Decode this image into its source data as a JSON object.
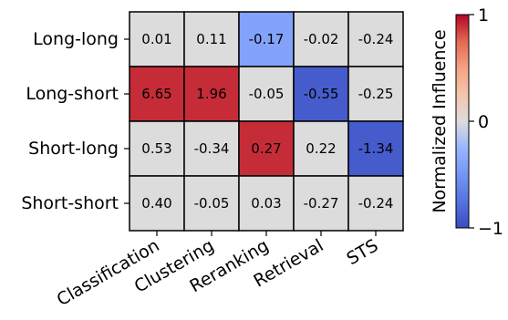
{
  "chart_data": {
    "type": "heatmap",
    "title": "",
    "xlabel": "",
    "ylabel": "",
    "rows": [
      "Long-long",
      "Long-short",
      "Short-long",
      "Short-short"
    ],
    "columns": [
      "Classification",
      "Clustering",
      "Reranking",
      "Retrieval",
      "STS"
    ],
    "values": [
      [
        0.01,
        0.11,
        -0.17,
        -0.02,
        -0.24
      ],
      [
        6.65,
        1.96,
        -0.05,
        -0.55,
        -0.25
      ],
      [
        0.53,
        -0.34,
        0.27,
        0.22,
        -1.34
      ],
      [
        0.4,
        -0.05,
        0.03,
        -0.27,
        -0.24
      ]
    ],
    "cell_labels": [
      [
        "0.01",
        "0.11",
        "-0.17",
        "-0.02",
        "-0.24"
      ],
      [
        "6.65",
        "1.96",
        "-0.05",
        "-0.55",
        "-0.25"
      ],
      [
        "0.53",
        "-0.34",
        "0.27",
        "0.22",
        "-1.34"
      ],
      [
        "0.40",
        "-0.05",
        "0.03",
        "-0.27",
        "-0.24"
      ]
    ],
    "normalized": [
      [
        0.0,
        0.0,
        -0.4,
        0.0,
        0.0
      ],
      [
        0.9,
        0.9,
        0.0,
        -0.9,
        0.0
      ],
      [
        0.0,
        0.0,
        0.9,
        0.0,
        -0.9
      ],
      [
        0.0,
        0.0,
        0.0,
        0.0,
        0.0
      ]
    ],
    "colormap": "coolwarm",
    "colorbar": {
      "label": "Normalized Influence",
      "range": [
        -1,
        1
      ],
      "ticks": [
        -1,
        0,
        1
      ],
      "tick_labels": [
        "−1",
        "0",
        "1"
      ]
    },
    "grid": true,
    "legend": "colorbar-right"
  }
}
